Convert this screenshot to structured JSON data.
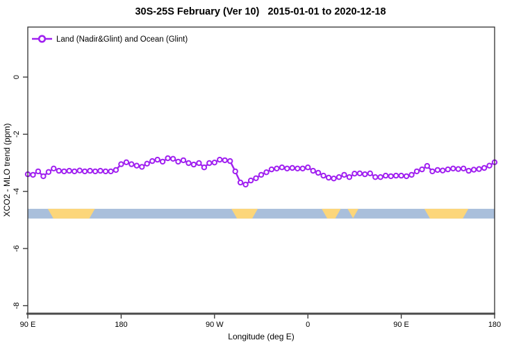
{
  "title": "30S-25S February (Ver 10)   2015-01-01 to 2020-12-18",
  "legend": {
    "label": "Land (Nadir&Glint) and Ocean (Glint)",
    "marker": "open-circle-on-line"
  },
  "axes": {
    "x_label": "Longitude (deg E)",
    "y_label": "XCO2 - MLO trend (ppm)",
    "x_ticks": [
      {
        "pos": 90,
        "label": "90 E"
      },
      {
        "pos": 180,
        "label": "180"
      },
      {
        "pos": 270,
        "label": "90 W"
      },
      {
        "pos": 360,
        "label": "0"
      },
      {
        "pos": 450,
        "label": "90 E"
      },
      {
        "pos": 540,
        "label": "180"
      }
    ],
    "y_ticks": [
      {
        "pos": 0,
        "label": "0"
      },
      {
        "pos": -2,
        "label": "-2"
      },
      {
        "pos": -4,
        "label": "-4"
      },
      {
        "pos": -6,
        "label": "-6"
      },
      {
        "pos": -8,
        "label": "-8"
      }
    ]
  },
  "colors": {
    "series": "#A020F0",
    "marker_fill": "#ffffff",
    "ocean": "#A9BFDB",
    "land": "#FCD67A",
    "box": "#2F2F2F",
    "baseline": "#4A4A4A",
    "text": "#000000"
  },
  "chart_data": {
    "type": "line",
    "title": "30S-25S February (Ver 10)   2015-01-01 to 2020-12-18",
    "xlabel": "Longitude (deg E)",
    "ylabel": "XCO2 - MLO trend (ppm)",
    "xlim": [
      90,
      540
    ],
    "ylim": [
      -8.28,
      1.75
    ],
    "grid": false,
    "legend_position": "top-left-inside",
    "x_note": "longitude plotted continuously 90E->180->90W->0->90E->180, 5 deg spacing",
    "x": [
      90,
      95,
      100,
      105,
      110,
      115,
      120,
      125,
      130,
      135,
      140,
      145,
      150,
      155,
      160,
      165,
      170,
      175,
      180,
      185,
      190,
      195,
      200,
      205,
      210,
      215,
      220,
      225,
      230,
      235,
      240,
      245,
      250,
      255,
      260,
      265,
      270,
      275,
      280,
      285,
      290,
      295,
      300,
      305,
      310,
      315,
      320,
      325,
      330,
      335,
      340,
      345,
      350,
      355,
      360,
      365,
      370,
      375,
      380,
      385,
      390,
      395,
      400,
      405,
      410,
      415,
      420,
      425,
      430,
      435,
      440,
      445,
      450,
      455,
      460,
      465,
      470,
      475,
      480,
      485,
      490,
      495,
      500,
      505,
      510,
      515,
      520,
      525,
      530,
      535,
      540
    ],
    "series": [
      {
        "name": "Land (Nadir&Glint) and Ocean (Glint)",
        "marker": "open-circle",
        "values": [
          -3.4,
          -3.42,
          -3.3,
          -3.47,
          -3.32,
          -3.2,
          -3.28,
          -3.3,
          -3.28,
          -3.3,
          -3.27,
          -3.3,
          -3.28,
          -3.3,
          -3.28,
          -3.3,
          -3.3,
          -3.25,
          -3.05,
          -2.98,
          -3.05,
          -3.1,
          -3.14,
          -3.03,
          -2.94,
          -2.89,
          -2.96,
          -2.84,
          -2.86,
          -2.96,
          -2.91,
          -3.01,
          -3.06,
          -3.01,
          -3.16,
          -3.01,
          -2.99,
          -2.89,
          -2.91,
          -2.94,
          -3.3,
          -3.69,
          -3.76,
          -3.62,
          -3.54,
          -3.42,
          -3.33,
          -3.23,
          -3.2,
          -3.16,
          -3.2,
          -3.18,
          -3.2,
          -3.2,
          -3.16,
          -3.28,
          -3.35,
          -3.45,
          -3.52,
          -3.55,
          -3.5,
          -3.42,
          -3.5,
          -3.38,
          -3.37,
          -3.4,
          -3.37,
          -3.5,
          -3.5,
          -3.45,
          -3.47,
          -3.45,
          -3.45,
          -3.47,
          -3.42,
          -3.3,
          -3.23,
          -3.11,
          -3.3,
          -3.25,
          -3.27,
          -3.23,
          -3.2,
          -3.22,
          -3.2,
          -3.28,
          -3.24,
          -3.22,
          -3.18,
          -3.1,
          -2.98
        ]
      }
    ],
    "surface_type_band": {
      "description": "horizontal strip: blue = ocean, yellow = land",
      "y_value": -4.78,
      "land_segments_lon": [
        [
          112,
          152
        ],
        [
          289,
          309
        ],
        [
          376,
          389
        ],
        [
          401,
          406
        ],
        [
          475,
          512
        ]
      ]
    }
  }
}
